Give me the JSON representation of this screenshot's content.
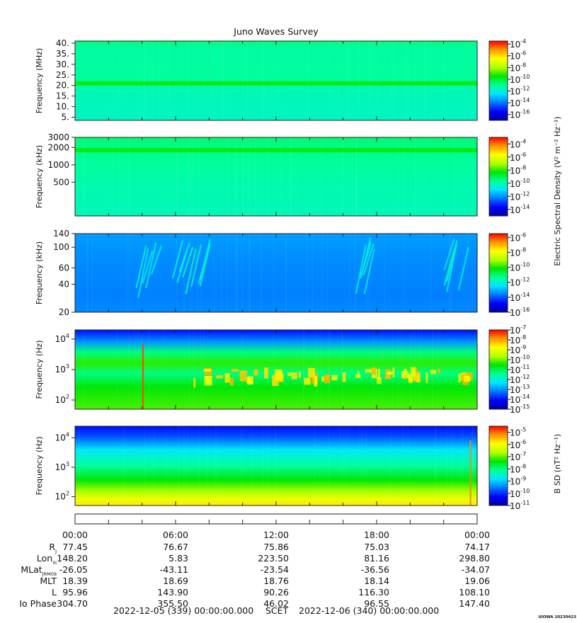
{
  "title": "Juno Waves Survey",
  "footer": {
    "start": "2022-12-05 (339) 00:00:00.000",
    "scet": "SCET",
    "end": "2022-12-06 (340) 00:00:00.000",
    "credit": "UIOWA 20230423"
  },
  "time_ticks": [
    "00:00",
    "06:00",
    "12:00",
    "18:00",
    "00:00"
  ],
  "ephemeris": {
    "labels": [
      "R_J",
      "Lon_III",
      "MLat_JRM09",
      "MLT",
      "L",
      "Io Phase"
    ],
    "rows": [
      [
        "77.45",
        "76.67",
        "75.86",
        "75.03",
        "74.17"
      ],
      [
        "148.20",
        "5.83",
        "223.50",
        "81.16",
        "298.80"
      ],
      [
        "-26.05",
        "-43.11",
        "-23.54",
        "-36.56",
        "-34.07"
      ],
      [
        "18.39",
        "18.69",
        "18.76",
        "18.14",
        "19.06"
      ],
      [
        "95.96",
        "143.90",
        "90.26",
        "116.30",
        "108.10"
      ],
      [
        "304.70",
        "355.50",
        "46.02",
        "96.55",
        "147.40"
      ]
    ]
  },
  "colorbar_titles": {
    "electric": "Electric Spectral Density (V² m⁻² Hz⁻¹)",
    "magnetic": "B SD (nT² Hz⁻¹)"
  },
  "colors": {
    "colormap": [
      "#0000a0",
      "#0000ff",
      "#0078ff",
      "#00e6ff",
      "#00ff96",
      "#00e600",
      "#b4ff00",
      "#ffff00",
      "#ff9600",
      "#ff0000"
    ]
  },
  "chart_data": [
    {
      "type": "heatmap",
      "title": "Juno Waves Survey",
      "ylabel": "Frequency (MHz)",
      "yticks": [
        "40.",
        "35.",
        "30.",
        "25.",
        "20.",
        "15.",
        "10.",
        "5."
      ],
      "ytick_values": [
        40,
        35,
        30,
        25,
        20,
        15,
        10,
        5
      ],
      "ylim": [
        3.5,
        41
      ],
      "y_scale": "linear",
      "x_range": [
        "2022-12-05 00:00",
        "2022-12-06 00:00"
      ],
      "colorbar": {
        "label_exponents": [
          "-4",
          "-6",
          "-8",
          "-10",
          "-12",
          "-14",
          "-16"
        ],
        "range_exp": [
          -17,
          -3.5
        ]
      },
      "features": [
        {
          "kind": "band",
          "y": 21,
          "level": 0.56,
          "note": "bright band near 21 MHz"
        }
      ]
    },
    {
      "type": "heatmap",
      "ylabel": "Frequency (kHz)",
      "yticks": [
        "3000",
        "2000",
        "1000",
        "500"
      ],
      "ytick_values": [
        3000,
        2000,
        1000,
        500
      ],
      "ylim": [
        130,
        3000
      ],
      "y_scale": "log",
      "colorbar": {
        "label_exponents": [
          "-4",
          "-6",
          "-8",
          "-10",
          "-12",
          "-14"
        ],
        "range_exp": [
          -15,
          -3
        ]
      },
      "features": [
        {
          "kind": "band",
          "y": 1800,
          "level": 0.55
        }
      ]
    },
    {
      "type": "heatmap",
      "ylabel": "Frequency (kHz)",
      "yticks": [
        "140",
        "100",
        "60",
        "40",
        "20"
      ],
      "ytick_values": [
        140,
        100,
        60,
        40,
        20
      ],
      "ylim": [
        20,
        140
      ],
      "y_scale": "log",
      "colorbar": {
        "label_exponents": [
          "-6",
          "-8",
          "-10",
          "-12",
          "-14",
          "-16"
        ],
        "range_exp": [
          -16,
          -5.5
        ]
      },
      "features": [
        {
          "kind": "streaks",
          "hours": [
            4.3,
            6.6,
            7.5,
            17.5,
            22.8
          ],
          "level": 0.32
        }
      ]
    },
    {
      "type": "heatmap",
      "ylabel": "Frequency (Hz)",
      "yticks": [
        "10^4",
        "10^3",
        "10^2"
      ],
      "ytick_values": [
        10000,
        1000,
        100
      ],
      "ylim": [
        50,
        20000
      ],
      "y_scale": "log",
      "colorbar": {
        "label_exponents": [
          "-7",
          "-8",
          "-9",
          "-10",
          "-11",
          "-12",
          "-13",
          "-14",
          "-15"
        ],
        "range_exp": [
          -15,
          -7
        ]
      },
      "features": [
        {
          "kind": "emission_band",
          "y_low": 300,
          "y_high": 1200,
          "level": 0.75
        },
        {
          "kind": "spike",
          "hours": [
            4.05
          ],
          "level": 0.95
        }
      ]
    },
    {
      "type": "heatmap",
      "ylabel": "Frequency (Hz)",
      "yticks": [
        "10^4",
        "10^3",
        "10^2"
      ],
      "ytick_values": [
        10000,
        1000,
        100
      ],
      "ylim": [
        50,
        25000
      ],
      "y_scale": "log",
      "colorbar": {
        "label_exponents": [
          "-5",
          "-6",
          "-7",
          "-8",
          "-9",
          "-10",
          "-11"
        ],
        "range_exp": [
          -11,
          -4.5
        ]
      },
      "features": [
        {
          "kind": "gradient",
          "low_freq_level": 0.72,
          "high_freq_level": 0.12
        },
        {
          "kind": "spike",
          "hours": [
            23.6
          ],
          "level": 0.9
        }
      ]
    }
  ]
}
